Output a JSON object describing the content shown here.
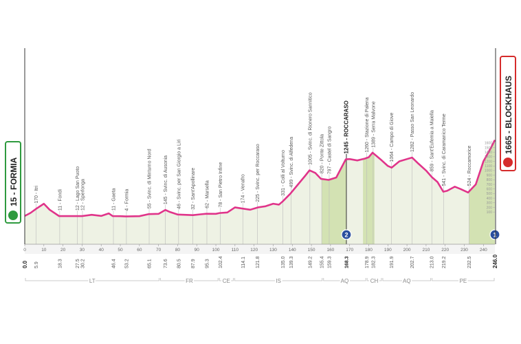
{
  "chart_data": {
    "type": "area",
    "start": "15 - FORMIA",
    "finish": "1665 - BLOCKHAUS",
    "color": "#e0348a",
    "fill": "#eef2e4",
    "climb_color": "#d3e2b3",
    "xlim": [
      0,
      246
    ],
    "ylim": [
      -600,
      2000
    ],
    "xticks": [
      0,
      10,
      20,
      30,
      40,
      50,
      60,
      70,
      80,
      90,
      100,
      110,
      120,
      130,
      140,
      150,
      160,
      170,
      180,
      190,
      200,
      210,
      220,
      230,
      240
    ],
    "yticks": [
      100,
      200,
      300,
      400,
      500,
      600,
      700,
      800,
      900,
      1000,
      1100,
      1200,
      1300,
      1400,
      1500,
      1600
    ],
    "x": [
      0,
      3,
      6,
      10,
      13,
      18,
      27,
      30,
      35,
      40,
      44,
      46,
      50,
      53,
      60,
      65,
      70,
      73.6,
      76,
      80,
      88,
      92,
      95,
      100,
      102,
      106,
      110,
      114,
      118,
      122,
      126,
      130,
      133,
      135,
      139,
      143,
      147,
      149,
      152,
      155,
      159,
      163,
      168,
      170,
      174,
      178,
      180,
      182,
      186,
      190,
      192,
      196,
      200,
      202.7,
      206,
      210,
      213,
      216,
      219,
      221,
      225,
      228,
      232,
      236,
      240,
      244,
      246
    ],
    "values": [
      15,
      80,
      170,
      280,
      150,
      11,
      12,
      12,
      40,
      15,
      70,
      11,
      10,
      4,
      10,
      55,
      60,
      145,
      100,
      46,
      32,
      50,
      62,
      60,
      78,
      90,
      200,
      174,
      150,
      200,
      225,
      280,
      260,
      331,
      499,
      700,
      900,
      1005,
      950,
      820,
      797,
      850,
      1245,
      1250,
      1220,
      1260,
      1290,
      1389,
      1250,
      1100,
      1064,
      1200,
      1250,
      1282,
      1150,
      1000,
      859,
      750,
      541,
      560,
      650,
      600,
      524,
      700,
      1200,
      1500,
      1665
    ],
    "climbs": [
      [
        155.4,
        168.3
      ],
      [
        177,
        183
      ],
      [
        232.5,
        246
      ]
    ],
    "waypoints": [
      {
        "label": "170 - Itri",
        "km": 5.9
      },
      {
        "label": "11 - Fondi",
        "km": 18.3
      },
      {
        "label": "12 - Lago San Puoto",
        "km": 27.5
      },
      {
        "label": "12 - Sperlonga",
        "km": 30.2
      },
      {
        "label": "11 - Gaeta",
        "km": 46.4
      },
      {
        "label": "4 - Formia",
        "km": 53.2
      },
      {
        "label": "55 - Svinc. di Minturno Nord",
        "km": 65.1
      },
      {
        "label": "145 - Svinc. di Ausonia",
        "km": 73.6
      },
      {
        "label": "46 - Svinc. per San Giorgio a Liri",
        "km": 80.5
      },
      {
        "label": "32 - Sant'Apollinare",
        "km": 87.9
      },
      {
        "label": "62 - Marsella",
        "km": 95.3
      },
      {
        "label": "78 - San Pietro Infine",
        "km": 102.4
      },
      {
        "label": "174 - Venafro",
        "km": 114.1
      },
      {
        "label": "225 - Svinc. per Roccaraso",
        "km": 121.8
      },
      {
        "label": "331 - Colli al Volturno",
        "km": {
          "value": 135,
          "label": "135.0"
        }
      },
      {
        "label": "499 - Svinc. di Alfedena",
        "km": 139.3
      },
      {
        "label": "1005 - Svinc. di Rionero Sannitico",
        "km": 149.2
      },
      {
        "label": "820 - Ponte Zittola",
        "km": 155.4
      },
      {
        "label": "797 - Castel di Sangro",
        "km": 159.3
      },
      {
        "label": "1245 - ROCCARASO",
        "km": 168.3,
        "bold": true
      },
      {
        "label": "1260 - Stazione di Palena",
        "km": 178.9
      },
      {
        "label": "1389 - Serra Malvone",
        "km": 182.3
      },
      {
        "label": "1064 - Campo di Giove",
        "km": 191.9
      },
      {
        "label": "1282 - Passo San Leonardo",
        "km": 202.7
      },
      {
        "label": "859 - Sant'Eufemia a Maiella",
        "km": {
          "value": 213,
          "label": "213.0"
        }
      },
      {
        "label": "541 - Svinc. di Caramanico Terme",
        "km": 219.2
      },
      {
        "label": "524 - Roccamorice",
        "km": 232.5
      }
    ],
    "ends": [
      {
        "value": 0,
        "label": "0.0"
      },
      {
        "value": 246,
        "label": "246.0"
      }
    ],
    "kom": [
      {
        "km": 168.3,
        "category": 2
      },
      {
        "km": 246,
        "category": 1
      }
    ],
    "regions": [
      {
        "label": "LT",
        "start": 0,
        "end": 70.7
      },
      {
        "label": "FR",
        "start": 70.7,
        "end": 101.5
      },
      {
        "label": "CE",
        "start": 101.5,
        "end": 109.5
      },
      {
        "label": "IS",
        "start": 109.5,
        "end": 156
      },
      {
        "label": "AQ",
        "start": 156,
        "end": 178.8
      },
      {
        "label": "CH",
        "start": 178.8,
        "end": 187
      },
      {
        "label": "AQ",
        "start": 187,
        "end": 212.8
      },
      {
        "label": "PE",
        "start": 212.8,
        "end": 246
      }
    ]
  }
}
